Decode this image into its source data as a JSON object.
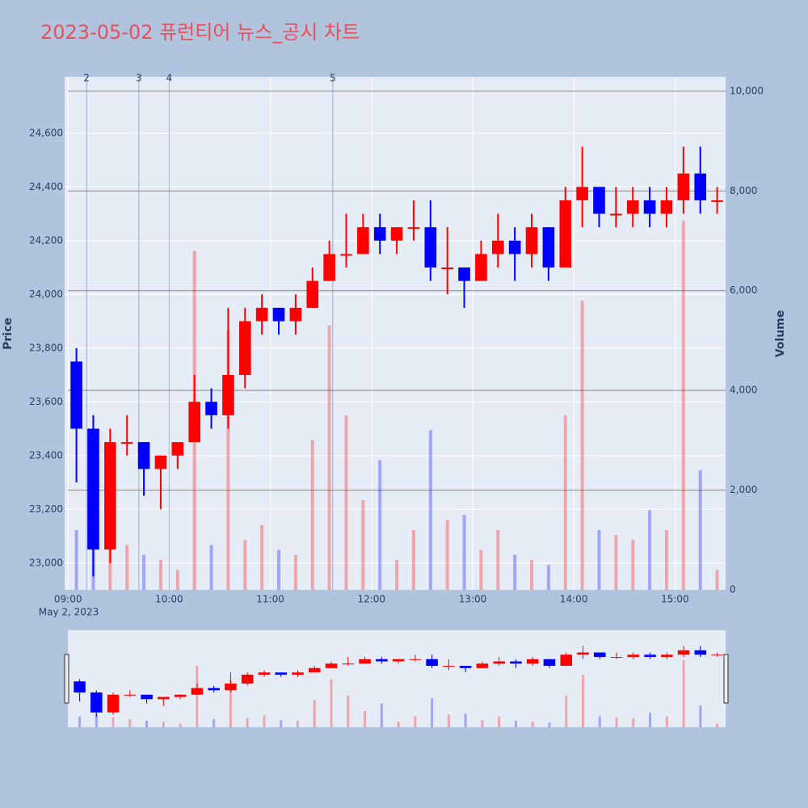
{
  "chart_data": {
    "type": "candlestick",
    "title": "2023-05-02 퓨런티어 뉴스_공시 차트",
    "ylabel": "Price",
    "y2label": "Volume",
    "x_date_label": "May 2, 2023",
    "x": [
      "2023-05-02 09:00",
      "2023-05-02 09:10",
      "2023-05-02 09:20",
      "2023-05-02 09:30",
      "2023-05-02 09:40",
      "2023-05-02 09:50",
      "2023-05-02 10:00",
      "2023-05-02 10:10",
      "2023-05-02 10:20",
      "2023-05-02 10:30",
      "2023-05-02 10:40",
      "2023-05-02 10:50",
      "2023-05-02 11:00",
      "2023-05-02 11:10",
      "2023-05-02 11:20",
      "2023-05-02 11:30",
      "2023-05-02 11:40",
      "2023-05-02 11:50",
      "2023-05-02 12:00",
      "2023-05-02 12:10",
      "2023-05-02 12:20",
      "2023-05-02 12:30",
      "2023-05-02 12:40",
      "2023-05-02 12:50",
      "2023-05-02 13:00",
      "2023-05-02 13:10",
      "2023-05-02 13:20",
      "2023-05-02 13:30",
      "2023-05-02 13:40",
      "2023-05-02 13:50",
      "2023-05-02 14:00",
      "2023-05-02 14:10",
      "2023-05-02 14:20",
      "2023-05-02 14:30",
      "2023-05-02 14:40",
      "2023-05-02 14:50",
      "2023-05-02 15:00",
      "2023-05-02 15:10",
      "2023-05-02 15:20"
    ],
    "open": [
      23750,
      23500,
      23050,
      23450,
      23450,
      23350,
      23400,
      23450,
      23600,
      23550,
      23700,
      23900,
      23950,
      23900,
      23950,
      24050,
      24150,
      24150,
      24250,
      24200,
      24250,
      24250,
      24100,
      24100,
      24050,
      24150,
      24200,
      24150,
      24250,
      24100,
      24350,
      24400,
      24300,
      24300,
      24350,
      24300,
      24350,
      24450,
      24350
    ],
    "high": [
      23800,
      23550,
      23500,
      23550,
      23450,
      23400,
      23450,
      23700,
      23650,
      23950,
      23950,
      24000,
      23950,
      24000,
      24100,
      24200,
      24300,
      24300,
      24300,
      24250,
      24350,
      24350,
      24250,
      24100,
      24200,
      24300,
      24250,
      24300,
      24250,
      24400,
      24550,
      24400,
      24400,
      24400,
      24400,
      24400,
      24550,
      24550,
      24400
    ],
    "low": [
      23300,
      22950,
      23000,
      23400,
      23250,
      23200,
      23350,
      23450,
      23500,
      23500,
      23650,
      23850,
      23850,
      23850,
      23950,
      24050,
      24100,
      24150,
      24150,
      24150,
      24200,
      24050,
      24000,
      23950,
      24050,
      24100,
      24050,
      24100,
      24050,
      24100,
      24250,
      24250,
      24250,
      24250,
      24250,
      24250,
      24300,
      24300,
      24300
    ],
    "close": [
      23500,
      23050,
      23450,
      23450,
      23350,
      23400,
      23450,
      23600,
      23550,
      23700,
      23900,
      23950,
      23900,
      23950,
      24050,
      24150,
      24150,
      24250,
      24200,
      24250,
      24250,
      24100,
      24100,
      24050,
      24150,
      24200,
      24150,
      24250,
      24100,
      24350,
      24400,
      24300,
      24300,
      24350,
      24300,
      24350,
      24450,
      24350,
      24350
    ],
    "volume": [
      1200,
      1500,
      1100,
      900,
      700,
      600,
      400,
      6800,
      900,
      5200,
      1000,
      1300,
      800,
      700,
      3000,
      5300,
      3500,
      1800,
      2600,
      600,
      1200,
      3200,
      1400,
      1500,
      800,
      1200,
      700,
      600,
      500,
      3500,
      5800,
      1200,
      1100,
      1000,
      1600,
      1200,
      7400,
      2400,
      400
    ],
    "increasing_color": "#ff0000",
    "decreasing_color": "#0000ff",
    "news": [
      {
        "x": "2023-05-02 09:11",
        "label": "2"
      },
      {
        "x": "2023-05-02 09:42",
        "label": "3"
      },
      {
        "x": "2023-05-02 10:00",
        "label": "4"
      },
      {
        "x": "2023-05-02 11:37",
        "label": "5"
      }
    ],
    "xlim": [
      "2023-05-02 08:58",
      "2023-05-02 15:30"
    ],
    "xticks": [
      {
        "value": "2023-05-02 09:00",
        "label": "09:00"
      },
      {
        "value": "2023-05-02 10:00",
        "label": "10:00"
      },
      {
        "value": "2023-05-02 11:00",
        "label": "11:00"
      },
      {
        "value": "2023-05-02 12:00",
        "label": "12:00"
      },
      {
        "value": "2023-05-02 13:00",
        "label": "13:00"
      },
      {
        "value": "2023-05-02 14:00",
        "label": "14:00"
      },
      {
        "value": "2023-05-02 15:00",
        "label": "15:00"
      }
    ],
    "ylim": [
      22900,
      24810
    ],
    "yticks": [
      {
        "value": 23000,
        "label": "23,000"
      },
      {
        "value": 23200,
        "label": "23,200"
      },
      {
        "value": 23400,
        "label": "23,400"
      },
      {
        "value": 23600,
        "label": "23,600"
      },
      {
        "value": 23800,
        "label": "23,800"
      },
      {
        "value": 24000,
        "label": "24,000"
      },
      {
        "value": 24200,
        "label": "24,200"
      },
      {
        "value": 24400,
        "label": "24,400"
      },
      {
        "value": 24600,
        "label": "24,600"
      }
    ],
    "y2lim": [
      0,
      10290
    ],
    "y2ticks": [
      0,
      {
        "value": 2000,
        "label": "2,000"
      },
      {
        "value": 4000,
        "label": "4,000"
      },
      {
        "value": 6000,
        "label": "6,000"
      },
      {
        "value": 8000,
        "label": "8,000"
      },
      {
        "value": 10000,
        "label": "10,000"
      }
    ],
    "grid": true,
    "rangeslider": true
  }
}
